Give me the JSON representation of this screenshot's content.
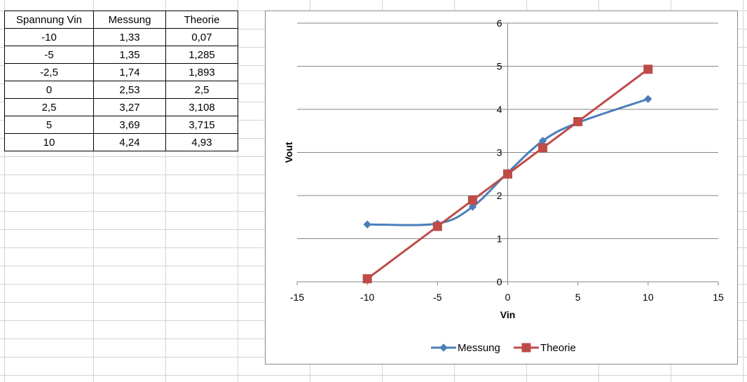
{
  "sheet": {
    "table_headers": [
      "Spannung Vin",
      "Messung",
      "Theorie"
    ],
    "table_rows": [
      [
        "-10",
        "1,33",
        "0,07"
      ],
      [
        "-5",
        "1,35",
        "1,285"
      ],
      [
        "-2,5",
        "1,74",
        "1,893"
      ],
      [
        "0",
        "2,53",
        "2,5"
      ],
      [
        "2,5",
        "3,27",
        "3,108"
      ],
      [
        "5",
        "3,69",
        "3,715"
      ],
      [
        "10",
        "4,24",
        "4,93"
      ]
    ],
    "grid_color": "#d4d4d4"
  },
  "chart_data": {
    "type": "scatter",
    "title": "",
    "xlabel": "Vin",
    "ylabel": "Vout",
    "xlim": [
      -15,
      15
    ],
    "ylim": [
      0,
      6
    ],
    "x_ticks": [
      -15,
      -10,
      -5,
      0,
      5,
      10,
      15
    ],
    "y_ticks": [
      0,
      1,
      2,
      3,
      4,
      5,
      6
    ],
    "grid": "horizontal major gridlines",
    "legend_position": "bottom",
    "series": [
      {
        "name": "Messung",
        "color": "#4a7ebb",
        "marker": "diamond",
        "smooth": true,
        "x": [
          -10,
          -5,
          -2.5,
          0,
          2.5,
          5,
          10
        ],
        "y": [
          1.33,
          1.35,
          1.74,
          2.53,
          3.27,
          3.69,
          4.24
        ]
      },
      {
        "name": "Theorie",
        "color": "#be4b48",
        "marker": "square",
        "smooth": false,
        "x": [
          -10,
          -5,
          -2.5,
          0,
          2.5,
          5,
          10
        ],
        "y": [
          0.07,
          1.285,
          1.893,
          2.5,
          3.108,
          3.715,
          4.93
        ]
      }
    ]
  }
}
